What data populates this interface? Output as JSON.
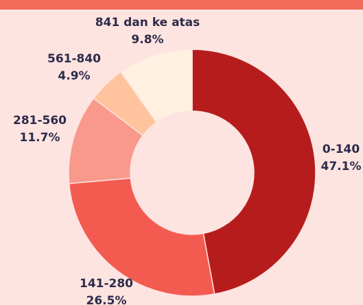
{
  "chart_data": {
    "type": "pie",
    "donut": true,
    "categories": [
      "0-140",
      "141-280",
      "281-560",
      "561-840",
      "841 dan ke atas"
    ],
    "values": [
      47.1,
      26.5,
      11.7,
      4.9,
      9.8
    ],
    "value_labels": [
      "47.1%",
      "26.5%",
      "11.7%",
      "4.9%",
      "9.8%"
    ],
    "colors": [
      "#b71c1c",
      "#f45b50",
      "#f8998c",
      "#ffc49e",
      "#fff0e0"
    ]
  }
}
